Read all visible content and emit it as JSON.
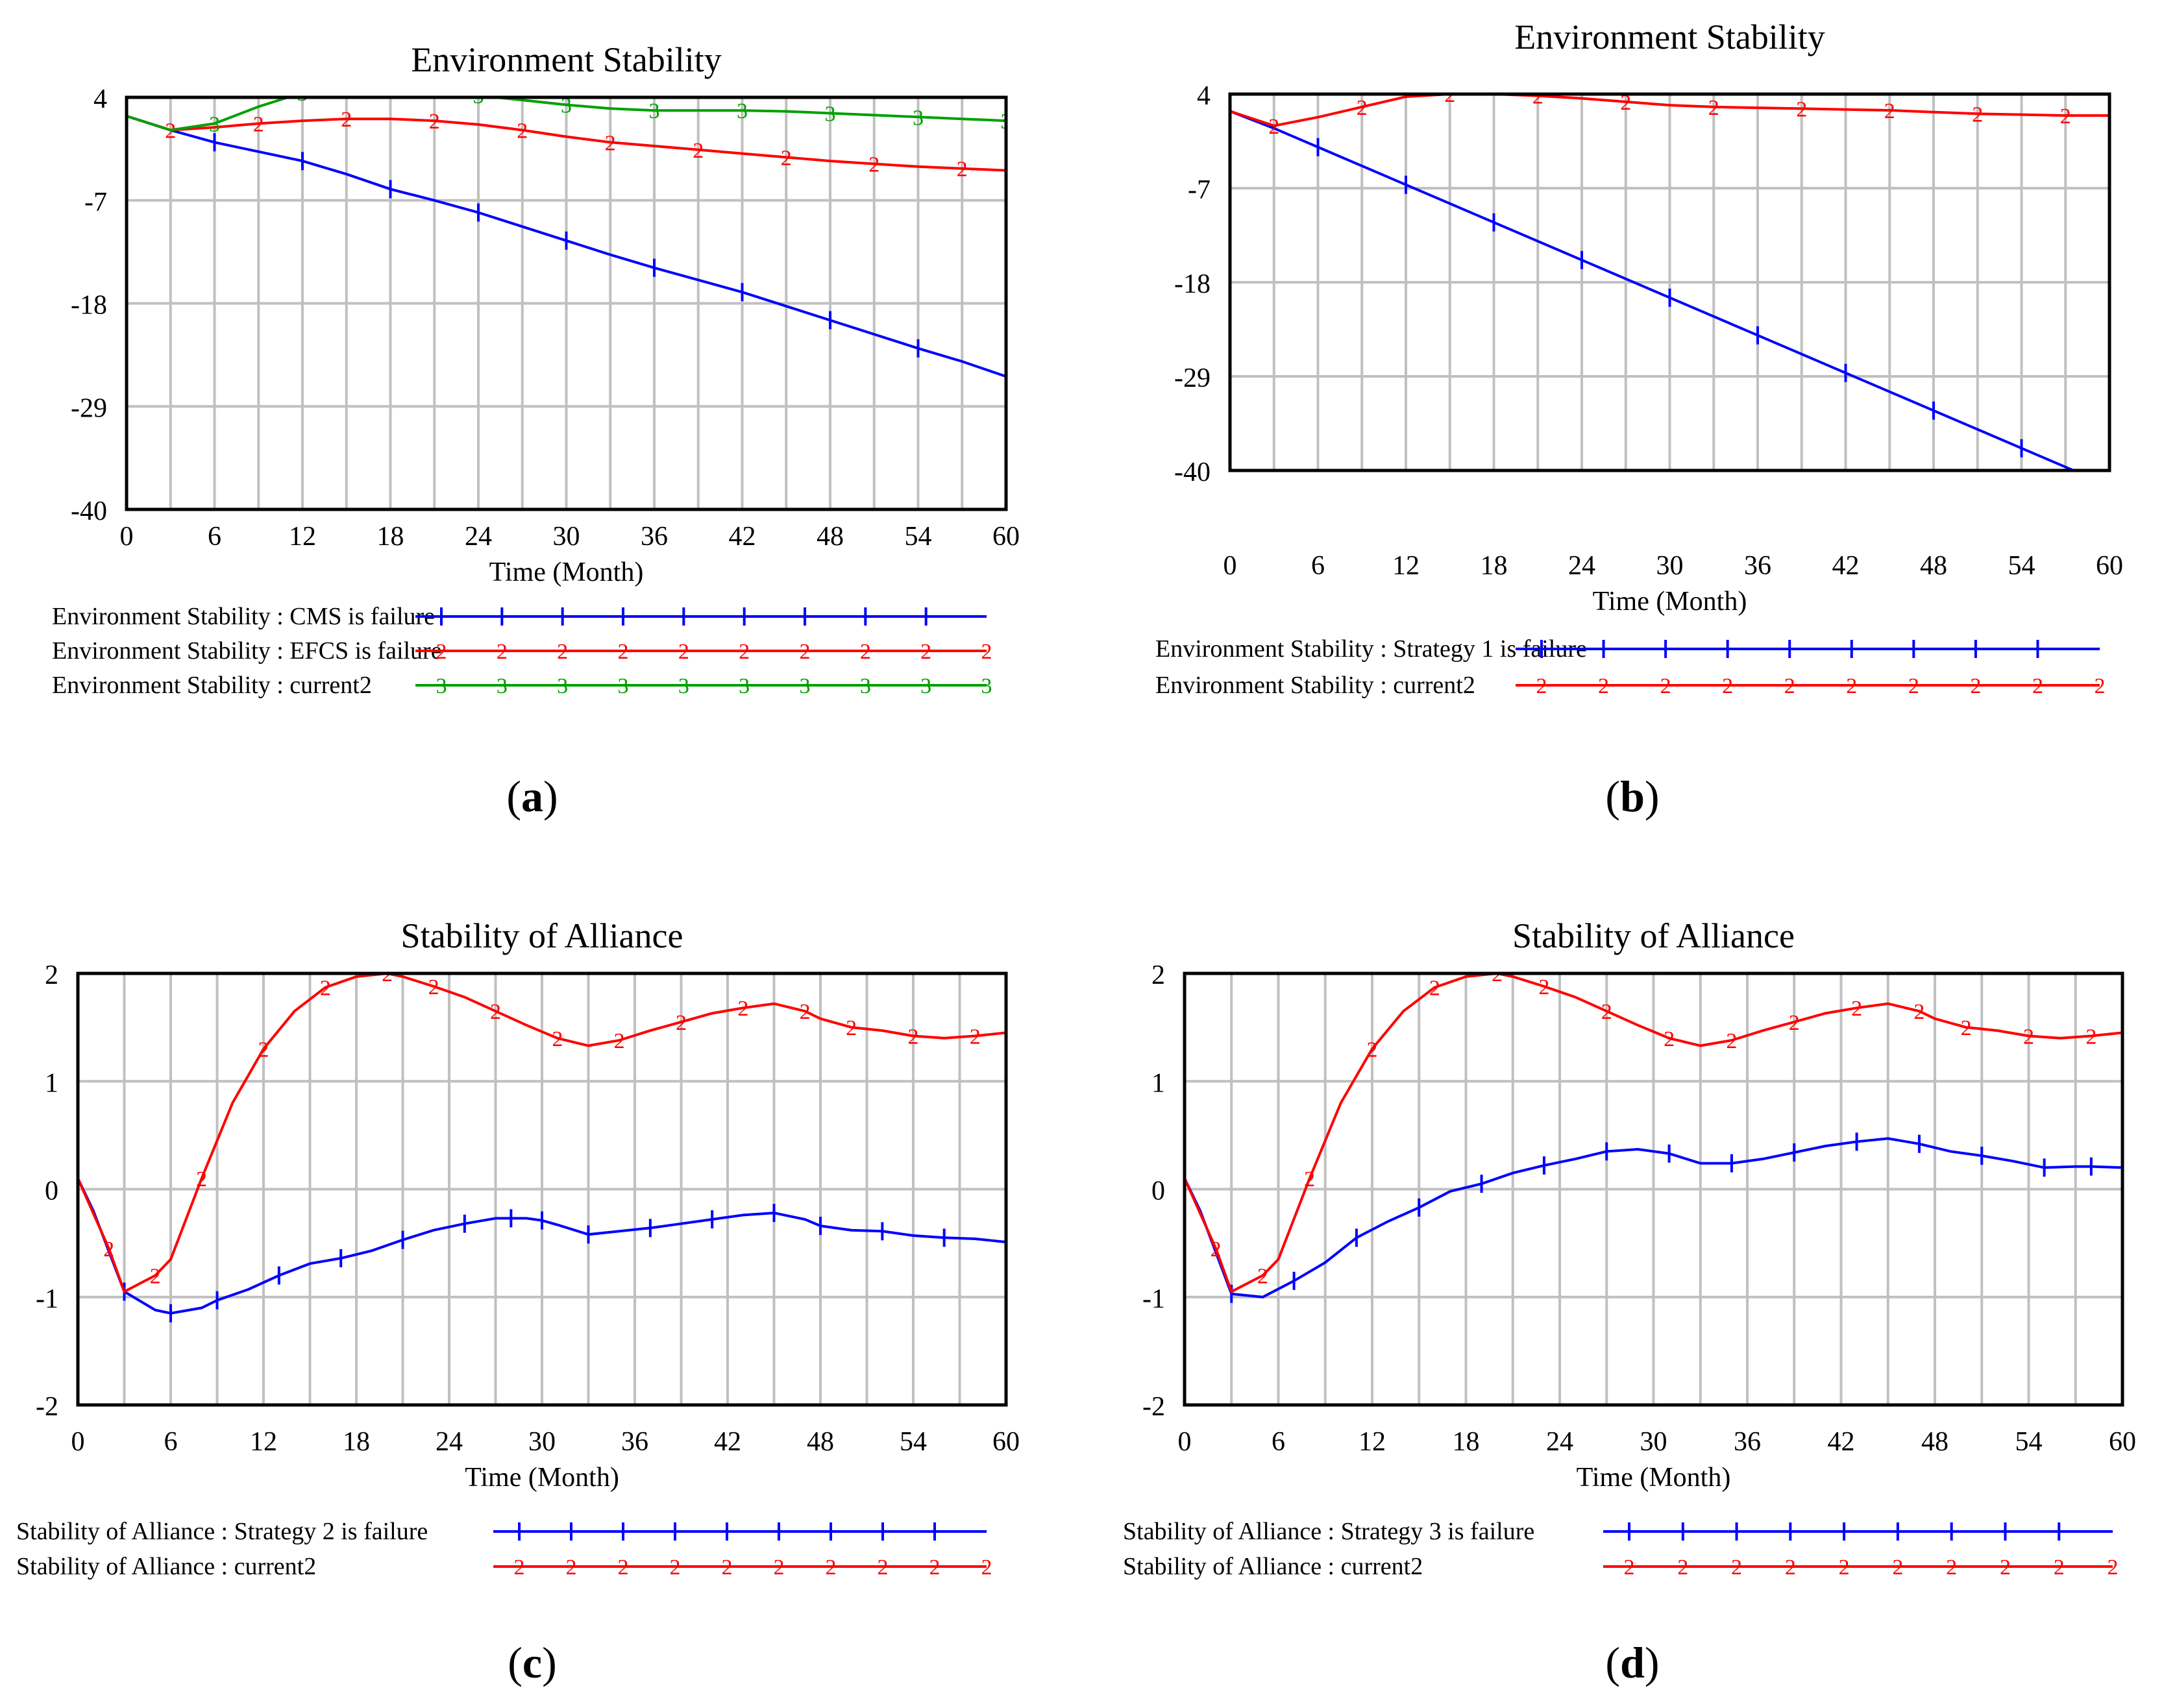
{
  "figure": {
    "colors": {
      "blue": "#0000ff",
      "red": "#ff0000",
      "green": "#00a000",
      "grid": "#c0c0c0",
      "frame": "#000000"
    }
  },
  "chart_data": [
    {
      "panel_label": "a",
      "type": "line",
      "title": "Environment Stability",
      "xlabel": "Time (Month)",
      "ylabel": "",
      "xlim": [
        0,
        60
      ],
      "ylim": [
        -40,
        4
      ],
      "xticks": [
        "0",
        "6",
        "12",
        "18",
        "24",
        "30",
        "36",
        "42",
        "48",
        "54",
        "60"
      ],
      "yticks": [
        "4",
        "-7",
        "-18",
        "-29",
        "-40"
      ],
      "grid": true,
      "legend_position": "bottom",
      "series": [
        {
          "name": "Environment Stability : CMS is failure",
          "marker": "1",
          "color": "#0000ff",
          "x": [
            0,
            3,
            6,
            9,
            12,
            15,
            18,
            21,
            24,
            27,
            30,
            33,
            36,
            39,
            42,
            45,
            48,
            51,
            54,
            57,
            60
          ],
          "y": [
            2,
            0.5,
            -0.8,
            -1.8,
            -2.8,
            -4.2,
            -5.8,
            -7,
            -8.3,
            -9.8,
            -11.3,
            -12.8,
            -14.2,
            -15.5,
            -16.8,
            -18.3,
            -19.8,
            -21.3,
            -22.8,
            -24.2,
            -25.8
          ]
        },
        {
          "name": "Environment Stability : EFCS is failure",
          "marker": "2",
          "color": "#ff0000",
          "x": [
            0,
            3,
            6,
            9,
            12,
            15,
            18,
            21,
            24,
            27,
            30,
            33,
            36,
            39,
            42,
            45,
            48,
            51,
            54,
            57,
            60
          ],
          "y": [
            2,
            0.5,
            0.8,
            1.2,
            1.5,
            1.7,
            1.7,
            1.5,
            1.1,
            0.5,
            -0.2,
            -0.8,
            -1.2,
            -1.6,
            -2,
            -2.4,
            -2.8,
            -3.1,
            -3.4,
            -3.6,
            -3.8
          ]
        },
        {
          "name": "Environment Stability : current2",
          "marker": "3",
          "color": "#00a000",
          "x": [
            0,
            3,
            6,
            9,
            12,
            15,
            18,
            21,
            24,
            27,
            30,
            33,
            36,
            39,
            42,
            45,
            48,
            51,
            54,
            57,
            60
          ],
          "y": [
            2,
            0.5,
            1.2,
            3,
            4.5,
            5,
            5,
            4.6,
            4.2,
            3.7,
            3.2,
            2.8,
            2.6,
            2.6,
            2.6,
            2.5,
            2.3,
            2.1,
            1.9,
            1.7,
            1.5
          ]
        }
      ]
    },
    {
      "panel_label": "b",
      "type": "line",
      "title": "Environment Stability",
      "xlabel": "Time (Month)",
      "ylabel": "",
      "xlim": [
        0,
        60
      ],
      "ylim": [
        -40,
        4
      ],
      "xticks": [
        "0",
        "6",
        "12",
        "18",
        "24",
        "30",
        "36",
        "42",
        "48",
        "54",
        "60"
      ],
      "yticks": [
        "4",
        "-7",
        "-18",
        "-29",
        "-40"
      ],
      "grid": true,
      "legend_position": "bottom",
      "series": [
        {
          "name": "Environment Stability : Strategy 1 is failure",
          "marker": "1",
          "color": "#0000ff",
          "x": [
            0,
            3,
            6,
            9,
            12,
            15,
            18,
            21,
            24,
            27,
            30,
            33,
            36,
            39,
            42,
            45,
            48,
            51,
            54,
            57,
            60
          ],
          "y": [
            2,
            0,
            -2.2,
            -4.4,
            -6.6,
            -8.8,
            -11,
            -13.2,
            -15.4,
            -17.6,
            -19.8,
            -22,
            -24.2,
            -26.4,
            -28.6,
            -30.8,
            -33,
            -35.2,
            -37.4,
            -39.6,
            -41.8
          ]
        },
        {
          "name": "Environment Stability : current2",
          "marker": "2",
          "color": "#ff0000",
          "x": [
            0,
            3,
            6,
            9,
            12,
            15,
            18,
            21,
            24,
            27,
            30,
            33,
            36,
            39,
            42,
            45,
            48,
            51,
            54,
            57,
            60
          ],
          "y": [
            2,
            0.3,
            1.3,
            2.5,
            3.7,
            4,
            4,
            3.8,
            3.5,
            3.1,
            2.7,
            2.5,
            2.4,
            2.3,
            2.2,
            2.1,
            1.9,
            1.7,
            1.6,
            1.5,
            1.5
          ]
        }
      ]
    },
    {
      "panel_label": "c",
      "type": "line",
      "title": "Stability of Alliance",
      "xlabel": "Time (Month)",
      "ylabel": "",
      "xlim": [
        0,
        60
      ],
      "ylim": [
        -2,
        2
      ],
      "xticks": [
        "0",
        "6",
        "12",
        "18",
        "24",
        "30",
        "36",
        "42",
        "48",
        "54",
        "60"
      ],
      "yticks": [
        "2",
        "1",
        "0",
        "-1",
        "-2"
      ],
      "grid": true,
      "legend_position": "bottom",
      "series": [
        {
          "name": "Stability of Alliance : Strategy 2 is failure",
          "marker": "1",
          "color": "#0000ff",
          "x": [
            0,
            1,
            3,
            5,
            6,
            8,
            9,
            11,
            13,
            15,
            17,
            19,
            21,
            23,
            25,
            27,
            28,
            29,
            30,
            31,
            33,
            35,
            37,
            39,
            41,
            43,
            45,
            47,
            48,
            50,
            52,
            54,
            56,
            58,
            60
          ],
          "y": [
            0.1,
            -0.2,
            -0.95,
            -1.12,
            -1.15,
            -1.1,
            -1.03,
            -0.93,
            -0.8,
            -0.69,
            -0.64,
            -0.57,
            -0.47,
            -0.38,
            -0.32,
            -0.27,
            -0.27,
            -0.27,
            -0.29,
            -0.33,
            -0.42,
            -0.39,
            -0.36,
            -0.32,
            -0.28,
            -0.24,
            -0.22,
            -0.28,
            -0.34,
            -0.38,
            -0.39,
            -0.43,
            -0.45,
            -0.46,
            -0.49
          ]
        },
        {
          "name": "Stability of Alliance : current2",
          "marker": "2",
          "color": "#ff0000",
          "x": [
            0,
            2,
            3,
            5,
            6,
            8,
            10,
            12,
            14,
            16,
            18,
            20,
            21,
            23,
            25,
            27,
            29,
            31,
            33,
            35,
            37,
            39,
            41,
            43,
            45,
            47,
            48,
            50,
            52,
            54,
            56,
            58,
            60
          ],
          "y": [
            0.1,
            -0.55,
            -0.95,
            -0.8,
            -0.65,
            0.1,
            0.8,
            1.3,
            1.65,
            1.87,
            1.97,
            2,
            1.97,
            1.88,
            1.78,
            1.65,
            1.52,
            1.4,
            1.33,
            1.38,
            1.47,
            1.55,
            1.63,
            1.68,
            1.72,
            1.65,
            1.58,
            1.5,
            1.47,
            1.42,
            1.4,
            1.42,
            1.45
          ]
        }
      ]
    },
    {
      "panel_label": "d",
      "type": "line",
      "title": "Stability of Alliance",
      "xlabel": "Time (Month)",
      "ylabel": "",
      "xlim": [
        0,
        60
      ],
      "ylim": [
        -2,
        2
      ],
      "xticks": [
        "0",
        "6",
        "12",
        "18",
        "24",
        "30",
        "36",
        "42",
        "48",
        "54",
        "60"
      ],
      "yticks": [
        "2",
        "1",
        "0",
        "-1",
        "-2"
      ],
      "grid": true,
      "legend_position": "bottom",
      "series": [
        {
          "name": "Stability of Alliance : Strategy 3 is failure",
          "marker": "1",
          "color": "#0000ff",
          "x": [
            0,
            1,
            3,
            5,
            7,
            9,
            11,
            13,
            15,
            17,
            19,
            21,
            23,
            25,
            27,
            29,
            31,
            33,
            35,
            37,
            39,
            41,
            43,
            45,
            47,
            49,
            51,
            53,
            55,
            57,
            58,
            60
          ],
          "y": [
            0.1,
            -0.2,
            -0.97,
            -1.0,
            -0.85,
            -0.68,
            -0.45,
            -0.3,
            -0.17,
            -0.02,
            0.05,
            0.15,
            0.22,
            0.28,
            0.35,
            0.37,
            0.33,
            0.24,
            0.24,
            0.28,
            0.34,
            0.4,
            0.44,
            0.47,
            0.42,
            0.35,
            0.31,
            0.26,
            0.2,
            0.21,
            0.21,
            0.2
          ]
        },
        {
          "name": "Stability of Alliance : current2",
          "marker": "2",
          "color": "#ff0000",
          "x": [
            0,
            2,
            3,
            5,
            6,
            8,
            10,
            12,
            14,
            16,
            18,
            20,
            21,
            23,
            25,
            27,
            29,
            31,
            33,
            35,
            37,
            39,
            41,
            43,
            45,
            47,
            48,
            50,
            52,
            54,
            56,
            58,
            60
          ],
          "y": [
            0.1,
            -0.55,
            -0.95,
            -0.8,
            -0.65,
            0.1,
            0.8,
            1.3,
            1.65,
            1.87,
            1.97,
            2,
            1.97,
            1.88,
            1.78,
            1.65,
            1.52,
            1.4,
            1.33,
            1.38,
            1.47,
            1.55,
            1.63,
            1.68,
            1.72,
            1.65,
            1.58,
            1.5,
            1.47,
            1.42,
            1.4,
            1.42,
            1.45
          ]
        }
      ]
    }
  ]
}
